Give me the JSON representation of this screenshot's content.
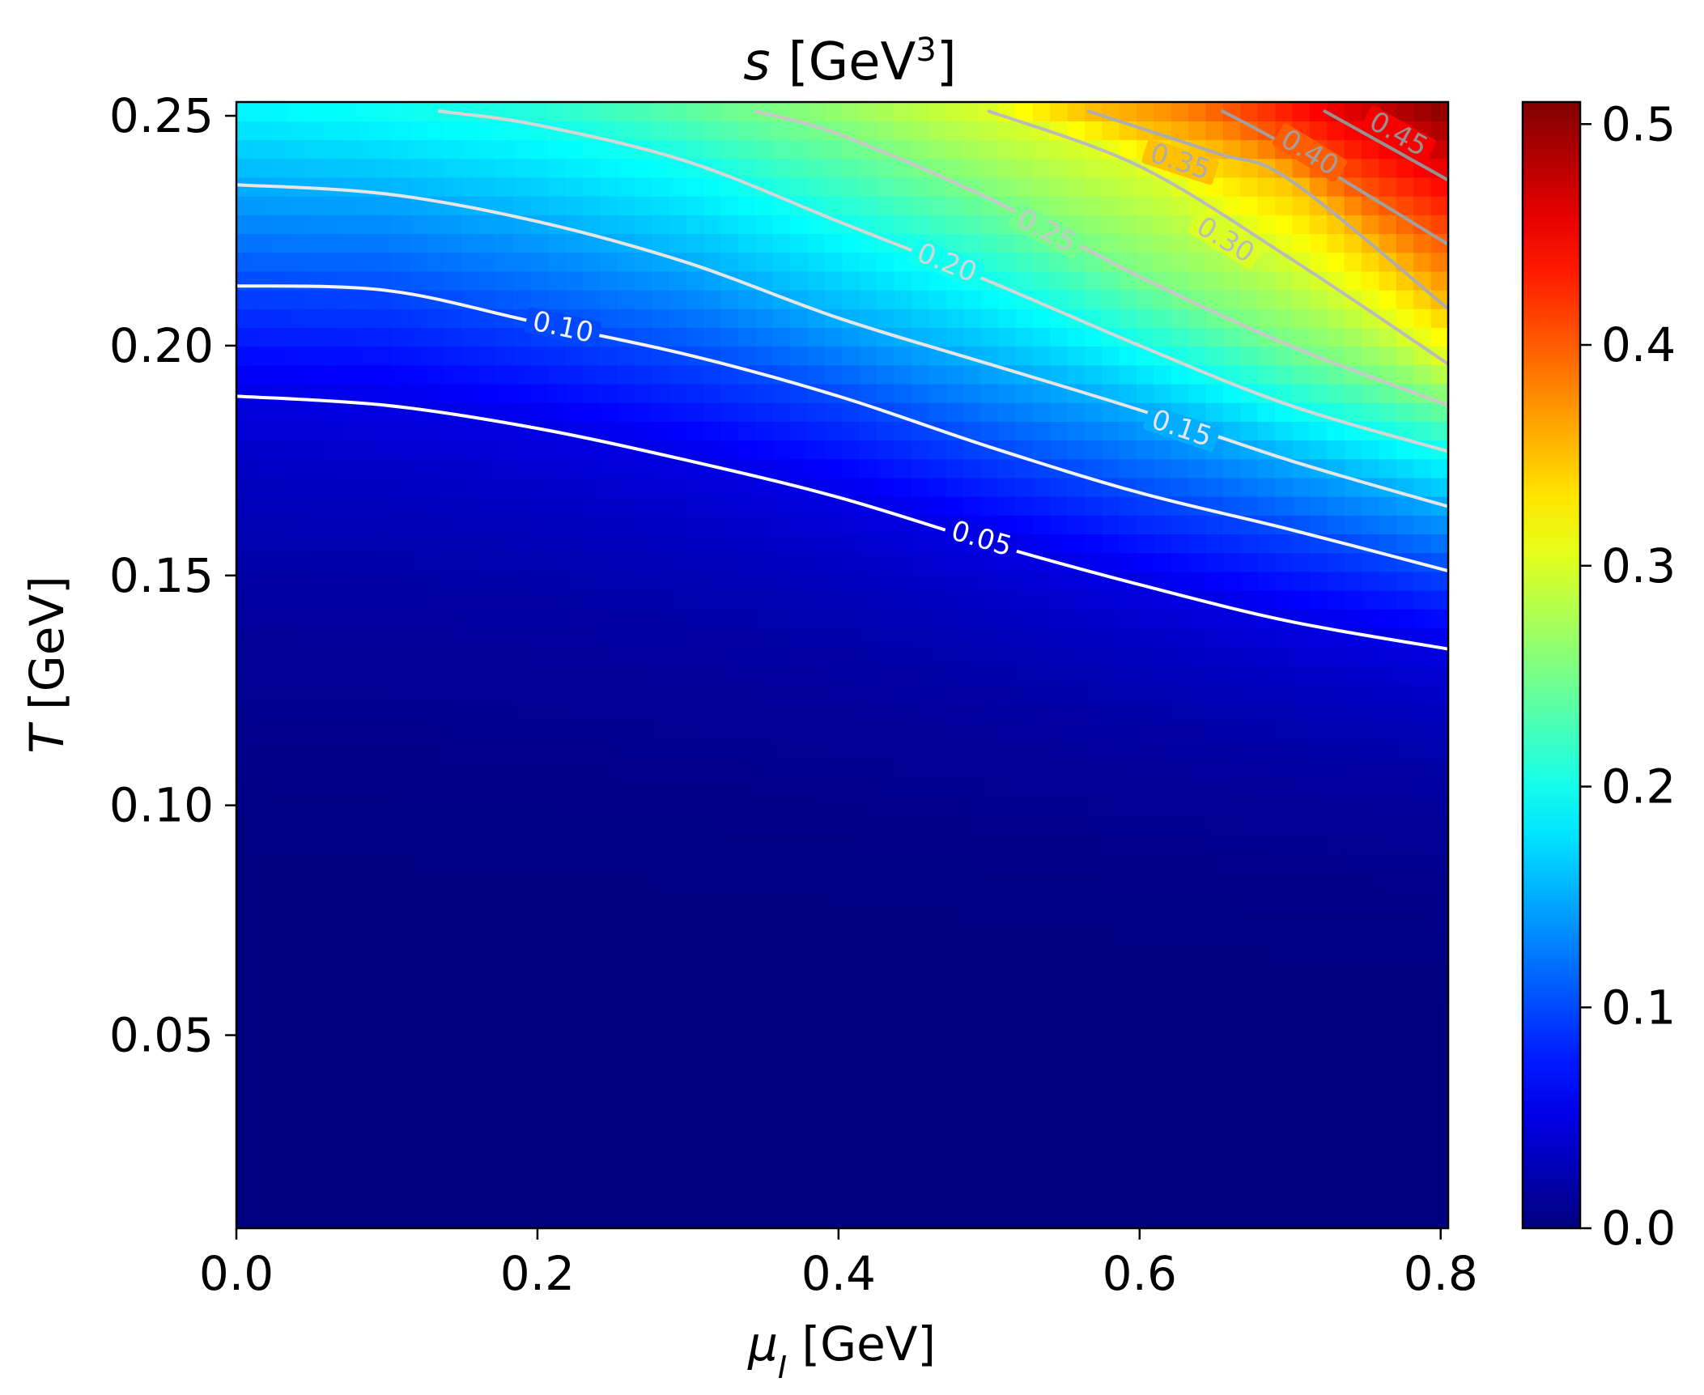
{
  "chart_data": {
    "type": "heatmap",
    "title": {
      "main": "s",
      "unit": "[GeV",
      "exponent": "3",
      "close": "]"
    },
    "xlabel": {
      "symbol": "μ",
      "subscript": "I",
      "unit": " [GeV]"
    },
    "ylabel": {
      "symbol": "T",
      "unit": " [GeV]"
    },
    "xlim": [
      0.0,
      0.805
    ],
    "ylim": [
      0.008,
      0.253
    ],
    "x_ticks": [
      {
        "value": 0.0,
        "label": "0.0"
      },
      {
        "value": 0.2,
        "label": "0.2"
      },
      {
        "value": 0.4,
        "label": "0.4"
      },
      {
        "value": 0.6,
        "label": "0.6"
      },
      {
        "value": 0.8,
        "label": "0.8"
      }
    ],
    "y_ticks": [
      {
        "value": 0.05,
        "label": "0.05"
      },
      {
        "value": 0.1,
        "label": "0.10"
      },
      {
        "value": 0.15,
        "label": "0.15"
      },
      {
        "value": 0.2,
        "label": "0.20"
      },
      {
        "value": 0.25,
        "label": "0.25"
      }
    ],
    "colormap": "jet",
    "colorbar": {
      "range": [
        0.0,
        0.51
      ],
      "ticks": [
        {
          "value": 0.0,
          "label": "0.0"
        },
        {
          "value": 0.1,
          "label": "0.1"
        },
        {
          "value": 0.2,
          "label": "0.2"
        },
        {
          "value": 0.3,
          "label": "0.3"
        },
        {
          "value": 0.4,
          "label": "0.4"
        },
        {
          "value": 0.5,
          "label": "0.5"
        }
      ]
    },
    "contours": [
      {
        "level": 0.05,
        "label": "0.05",
        "color": "#ffffff",
        "points": [
          [
            0.0,
            0.189
          ],
          [
            0.1,
            0.187
          ],
          [
            0.2,
            0.182
          ],
          [
            0.3,
            0.175
          ],
          [
            0.4,
            0.167
          ],
          [
            0.5,
            0.157
          ],
          [
            0.6,
            0.148
          ],
          [
            0.7,
            0.14
          ],
          [
            0.805,
            0.134
          ]
        ],
        "label_at": [
          0.495,
          0.158
        ]
      },
      {
        "level": 0.1,
        "label": "0.10",
        "color": "#f4f4f4",
        "points": [
          [
            0.0,
            0.213
          ],
          [
            0.1,
            0.212
          ],
          [
            0.2,
            0.205
          ],
          [
            0.3,
            0.198
          ],
          [
            0.4,
            0.189
          ],
          [
            0.5,
            0.178
          ],
          [
            0.6,
            0.168
          ],
          [
            0.7,
            0.16
          ],
          [
            0.805,
            0.151
          ]
        ],
        "label_at": [
          0.217,
          0.204
        ]
      },
      {
        "level": 0.15,
        "label": "0.15",
        "color": "#e6e6e6",
        "points": [
          [
            0.0,
            0.235
          ],
          [
            0.1,
            0.233
          ],
          [
            0.2,
            0.227
          ],
          [
            0.3,
            0.218
          ],
          [
            0.4,
            0.206
          ],
          [
            0.5,
            0.196
          ],
          [
            0.6,
            0.186
          ],
          [
            0.7,
            0.175
          ],
          [
            0.805,
            0.165
          ]
        ],
        "label_at": [
          0.628,
          0.182
        ]
      },
      {
        "level": 0.2,
        "label": "0.20",
        "color": "#d6d6d6",
        "points": [
          [
            0.135,
            0.251
          ],
          [
            0.2,
            0.248
          ],
          [
            0.3,
            0.24
          ],
          [
            0.4,
            0.227
          ],
          [
            0.5,
            0.214
          ],
          [
            0.6,
            0.2
          ],
          [
            0.7,
            0.187
          ],
          [
            0.805,
            0.177
          ]
        ],
        "label_at": [
          0.472,
          0.218
        ]
      },
      {
        "level": 0.25,
        "label": "0.25",
        "color": "#c8c8c8",
        "points": [
          [
            0.345,
            0.251
          ],
          [
            0.4,
            0.246
          ],
          [
            0.5,
            0.232
          ],
          [
            0.6,
            0.215
          ],
          [
            0.7,
            0.2
          ],
          [
            0.805,
            0.187
          ]
        ],
        "label_at": [
          0.538,
          0.225
        ]
      },
      {
        "level": 0.3,
        "label": "0.30",
        "color": "#bababa",
        "points": [
          [
            0.5,
            0.251
          ],
          [
            0.6,
            0.239
          ],
          [
            0.7,
            0.219
          ],
          [
            0.805,
            0.196
          ]
        ],
        "label_at": [
          0.657,
          0.223
        ]
      },
      {
        "level": 0.35,
        "label": "0.35",
        "color": "#adadad",
        "points": [
          [
            0.566,
            0.251
          ],
          [
            0.65,
            0.242
          ],
          [
            0.7,
            0.236
          ],
          [
            0.805,
            0.208
          ]
        ],
        "label_at": [
          0.627,
          0.24
        ]
      },
      {
        "level": 0.4,
        "label": "0.40",
        "color": "#a0a0a0",
        "points": [
          [
            0.655,
            0.251
          ],
          [
            0.7,
            0.243
          ],
          [
            0.805,
            0.222
          ]
        ],
        "label_at": [
          0.713,
          0.242
        ]
      },
      {
        "level": 0.45,
        "label": "0.45",
        "color": "#939393",
        "points": [
          [
            0.723,
            0.251
          ],
          [
            0.805,
            0.236
          ]
        ],
        "label_at": [
          0.772,
          0.246
        ]
      }
    ]
  }
}
